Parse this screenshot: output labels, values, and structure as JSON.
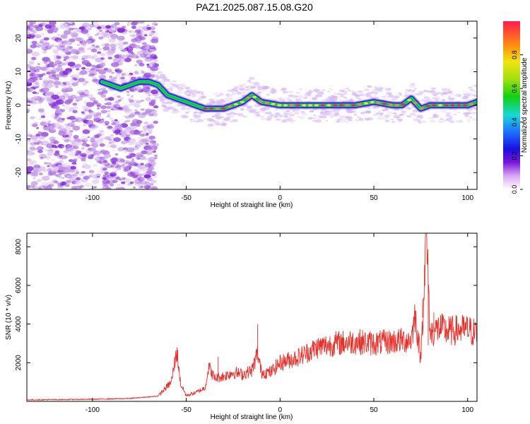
{
  "page": {
    "title": "PAZ1.2025.087.15.08.G20"
  },
  "chart_data": [
    {
      "type": "heatmap",
      "xlabel": "Height of straight line (km)",
      "ylabel": "Frequency (Hz)",
      "xlim": [
        -135,
        105
      ],
      "ylim": [
        -25,
        25
      ],
      "xticks": [
        "-100",
        "-50",
        "0",
        "50",
        "100"
      ],
      "yticks": [
        "-20",
        "-10",
        "0",
        "10",
        "20"
      ],
      "colorbar": {
        "label": "Normalized spectral amplitude",
        "range": [
          0.0,
          1.0
        ],
        "ticks": [
          "0.0",
          "0.2",
          "0.4",
          "0.6",
          "0.8"
        ]
      },
      "signal_track": {
        "x": [
          -95,
          -90,
          -85,
          -80,
          -75,
          -70,
          -65,
          -60,
          -55,
          -50,
          -45,
          -40,
          -35,
          -30,
          -25,
          -20,
          -15,
          -10,
          0,
          10,
          20,
          30,
          40,
          50,
          60,
          65,
          70,
          75,
          80,
          90,
          100,
          105
        ],
        "y": [
          7,
          6,
          5,
          6,
          7,
          7,
          6,
          3,
          2,
          1,
          0,
          -1,
          -1,
          -1,
          0,
          1,
          3,
          1,
          0,
          0,
          0,
          0,
          0,
          1,
          0,
          0,
          2,
          -1,
          0,
          0,
          0,
          1
        ]
      },
      "grid": false
    },
    {
      "type": "line",
      "xlabel": "Height of straight line (km)",
      "ylabel": "SNR (10 * v/v)",
      "xlim": [
        -135,
        105
      ],
      "ylim": [
        0,
        8700
      ],
      "xticks": [
        "-100",
        "-50",
        "0",
        "50",
        "100"
      ],
      "yticks": [
        "2000",
        "4000",
        "6000",
        "8000"
      ],
      "color": "#e8302a",
      "series": [
        {
          "x": [
            -135,
            -120,
            -100,
            -80,
            -65,
            -58,
            -55,
            -53,
            -50,
            -45,
            -40,
            -38,
            -35,
            -30,
            -25,
            -20,
            -15,
            -12,
            -10,
            -5,
            0,
            10,
            20,
            30,
            40,
            50,
            60,
            70,
            72,
            75,
            78,
            80,
            85,
            90,
            95,
            100,
            105
          ],
          "y": [
            80,
            90,
            110,
            150,
            280,
            1000,
            2600,
            900,
            300,
            450,
            700,
            1800,
            1200,
            1300,
            1500,
            1400,
            1600,
            2500,
            1500,
            1500,
            2000,
            2300,
            2800,
            3000,
            3100,
            3000,
            3100,
            3200,
            4500,
            2200,
            8600,
            3500,
            3800,
            3600,
            3700,
            3700,
            3500
          ]
        }
      ],
      "grid": false
    }
  ]
}
